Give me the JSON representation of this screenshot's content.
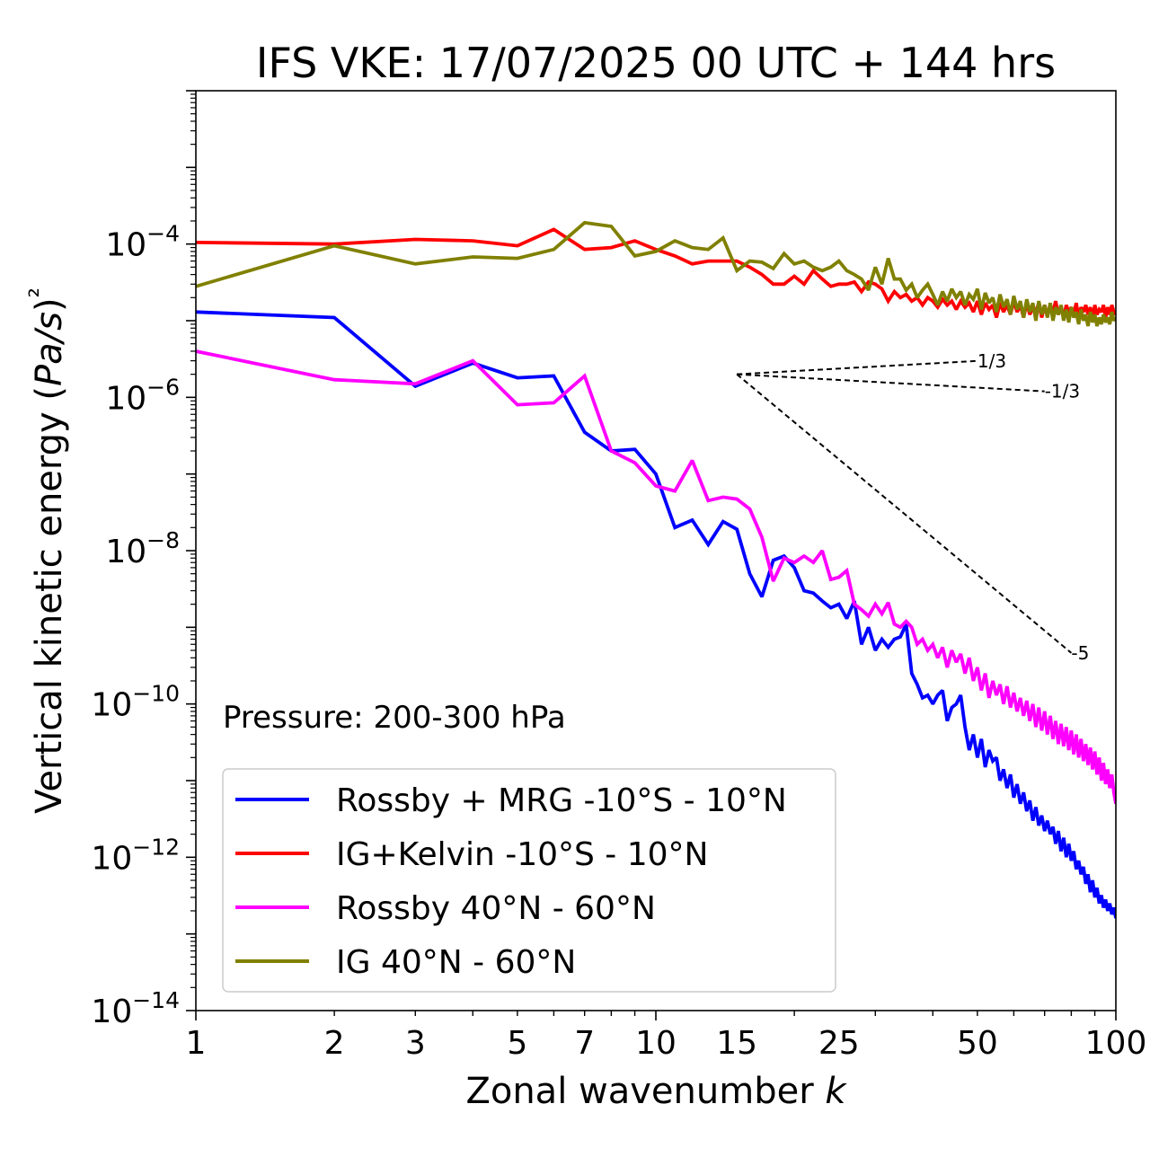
{
  "chart_data": {
    "type": "line",
    "title": "IFS VKE: 17/07/2025 00 UTC + 144 hrs",
    "xlabel": "Zonal wavenumber k",
    "ylabel": "Vertical kinetic energy (Pa/s)²",
    "xscale": "log",
    "yscale": "log",
    "xlim": [
      1,
      100
    ],
    "ylim": [
      1e-14,
      0.01
    ],
    "x_ticks": [
      1,
      2,
      3,
      5,
      7,
      10,
      15,
      25,
      50,
      100
    ],
    "x_tick_labels": [
      "1",
      "2",
      "3",
      "5",
      "7",
      "10",
      "15",
      "25",
      "50",
      "100"
    ],
    "y_ticks": [
      {
        "value": 0.0001,
        "base": "10",
        "exp": "−4"
      },
      {
        "value": 1e-06,
        "base": "10",
        "exp": "−6"
      },
      {
        "value": 1e-08,
        "base": "10",
        "exp": "−8"
      },
      {
        "value": 1e-10,
        "base": "10",
        "exp": "−10"
      },
      {
        "value": 1e-12,
        "base": "10",
        "exp": "−12"
      },
      {
        "value": 1e-14,
        "base": "10",
        "exp": "−14"
      }
    ],
    "grid": false,
    "legend_position": "lower-left",
    "annotation": "Pressure: 200-300 hPa",
    "reference_slopes": [
      {
        "label": "1/3",
        "slope": 0.3333,
        "x_start": 15,
        "y_start": 2e-06,
        "x_end": 50
      },
      {
        "label": "-1/3",
        "slope": -0.3333,
        "x_start": 15,
        "y_start": 2e-06,
        "x_end": 70
      },
      {
        "label": "-5",
        "slope": -5,
        "x_start": 15,
        "y_start": 2e-06,
        "x_end": 80
      }
    ],
    "series": [
      {
        "name": "Rossby + MRG -10°S - 10°N",
        "color": "#0000ff",
        "x": [
          1,
          2,
          3,
          4,
          5,
          6,
          7,
          8,
          9,
          10,
          11,
          12,
          13,
          14,
          15,
          16,
          17,
          18,
          19,
          20,
          21,
          22,
          23,
          24,
          25,
          26,
          27,
          28,
          29,
          30,
          31,
          32,
          33,
          34,
          35,
          36,
          37,
          38,
          39,
          40,
          41,
          42,
          43,
          44,
          45,
          46,
          47,
          48,
          49,
          50,
          51,
          52,
          53,
          54,
          55,
          56,
          57,
          58,
          59,
          60,
          61,
          62,
          63,
          64,
          65,
          66,
          67,
          68,
          69,
          70,
          71,
          72,
          73,
          74,
          75,
          76,
          77,
          78,
          79,
          80,
          81,
          82,
          83,
          84,
          85,
          86,
          87,
          88,
          89,
          90,
          91,
          92,
          93,
          94,
          95,
          96,
          97,
          98,
          99,
          100
        ],
        "y": [
          1.3e-05,
          1.1e-05,
          1.4e-06,
          2.8e-06,
          1.8e-06,
          1.9e-06,
          3.5e-07,
          2e-07,
          2.1e-07,
          1e-07,
          2e-08,
          2.5e-08,
          1.2e-08,
          2.4e-08,
          1.9e-08,
          5e-09,
          2.5e-09,
          7.5e-09,
          8.5e-09,
          6e-09,
          3e-09,
          2.8e-09,
          2.2e-09,
          1.8e-09,
          2e-09,
          1.3e-09,
          2.2e-09,
          6e-10,
          1e-09,
          5e-10,
          7e-10,
          5.5e-10,
          7e-10,
          7.5e-10,
          1.1e-09,
          2.5e-10,
          1.8e-10,
          1.2e-10,
          1.3e-10,
          1e-10,
          1.3e-10,
          1.5e-10,
          6e-11,
          9e-11,
          1e-10,
          1.3e-10,
          5e-11,
          2.5e-11,
          4e-11,
          2e-11,
          3.5e-11,
          1.5e-11,
          2.5e-11,
          1.8e-11,
          2e-11,
          1e-11,
          1.4e-11,
          8e-12,
          1.2e-11,
          6e-12,
          9e-12,
          5e-12,
          7e-12,
          4e-12,
          5.5e-12,
          3e-12,
          4.5e-12,
          2.6e-12,
          3.5e-12,
          2.2e-12,
          3e-12,
          2e-12,
          2.5e-12,
          1.5e-12,
          2.2e-12,
          1.2e-12,
          1.8e-12,
          1e-12,
          1.5e-12,
          9e-13,
          1.2e-12,
          7e-13,
          9e-13,
          6e-13,
          7.5e-13,
          4.5e-13,
          6e-13,
          3.5e-13,
          5e-13,
          3e-13,
          4e-13,
          2.5e-13,
          3.2e-13,
          2.2e-13,
          2.8e-13,
          2e-13,
          2.5e-13,
          1.8e-13,
          2.2e-13,
          1.6e-13
        ]
      },
      {
        "name": "IG+Kelvin -10°S - 10°N",
        "color": "#ff0000",
        "x": [
          1,
          2,
          3,
          4,
          5,
          6,
          7,
          8,
          9,
          10,
          11,
          12,
          13,
          14,
          15,
          16,
          17,
          18,
          19,
          20,
          21,
          22,
          23,
          24,
          25,
          26,
          27,
          28,
          29,
          30,
          31,
          32,
          33,
          34,
          35,
          36,
          37,
          38,
          39,
          40,
          41,
          42,
          43,
          44,
          45,
          46,
          47,
          48,
          49,
          50,
          51,
          52,
          53,
          54,
          55,
          56,
          57,
          58,
          59,
          60,
          61,
          62,
          63,
          64,
          65,
          66,
          67,
          68,
          69,
          70,
          71,
          72,
          73,
          74,
          75,
          76,
          77,
          78,
          79,
          80,
          81,
          82,
          83,
          84,
          85,
          86,
          87,
          88,
          89,
          90,
          91,
          92,
          93,
          94,
          95,
          96,
          97,
          98,
          99,
          100
        ],
        "y": [
          0.000105,
          0.0001,
          0.000115,
          0.00011,
          9.5e-05,
          0.000155,
          8.5e-05,
          9e-05,
          0.00011,
          8.5e-05,
          7e-05,
          5.5e-05,
          6e-05,
          6e-05,
          6e-05,
          5e-05,
          4e-05,
          3e-05,
          3e-05,
          3.8e-05,
          3e-05,
          4.5e-05,
          3.5e-05,
          2.8e-05,
          3e-05,
          3e-05,
          3.2e-05,
          2.4e-05,
          3.2e-05,
          3e-05,
          2.6e-05,
          1.8e-05,
          2.4e-05,
          2e-05,
          2.2e-05,
          1.8e-05,
          2e-05,
          1.6e-05,
          2e-05,
          1.8e-05,
          1.5e-05,
          1.9e-05,
          1.6e-05,
          1.8e-05,
          1.4e-05,
          1.8e-05,
          1.5e-05,
          1.7e-05,
          1.3e-05,
          1.8e-05,
          1.2e-05,
          1.7e-05,
          1.4e-05,
          1.6e-05,
          1.1e-05,
          1.7e-05,
          1.3e-05,
          1.6e-05,
          1.2e-05,
          1.8e-05,
          1.3e-05,
          1.6e-05,
          1.1e-05,
          1.7e-05,
          1.2e-05,
          1.5e-05,
          1.3e-05,
          1.7e-05,
          1.1e-05,
          1.6e-05,
          1.2e-05,
          1.5e-05,
          1.3e-05,
          1.8e-05,
          1.2e-05,
          1.5e-05,
          1.1e-05,
          1.6e-05,
          1.3e-05,
          1.5e-05,
          1.2e-05,
          1.7e-05,
          1.1e-05,
          1.5e-05,
          1.3e-05,
          1.6e-05,
          1.2e-05,
          1.5e-05,
          1.1e-05,
          1.6e-05,
          1.2e-05,
          1.4e-05,
          1.3e-05,
          1.6e-05,
          1.1e-05,
          1.5e-05,
          1.2e-05,
          1.6e-05,
          1.3e-05,
          1.2e-05
        ]
      },
      {
        "name": "Rossby 40°N - 60°N",
        "color": "#ff00ff",
        "x": [
          1,
          2,
          3,
          4,
          5,
          6,
          7,
          8,
          9,
          10,
          11,
          12,
          13,
          14,
          15,
          16,
          17,
          18,
          19,
          20,
          21,
          22,
          23,
          24,
          25,
          26,
          27,
          28,
          29,
          30,
          31,
          32,
          33,
          34,
          35,
          36,
          37,
          38,
          39,
          40,
          41,
          42,
          43,
          44,
          45,
          46,
          47,
          48,
          49,
          50,
          51,
          52,
          53,
          54,
          55,
          56,
          57,
          58,
          59,
          60,
          61,
          62,
          63,
          64,
          65,
          66,
          67,
          68,
          69,
          70,
          71,
          72,
          73,
          74,
          75,
          76,
          77,
          78,
          79,
          80,
          81,
          82,
          83,
          84,
          85,
          86,
          87,
          88,
          89,
          90,
          91,
          92,
          93,
          94,
          95,
          96,
          97,
          98,
          99,
          100
        ],
        "y": [
          4e-06,
          1.7e-06,
          1.5e-06,
          3e-06,
          8e-07,
          8.5e-07,
          1.9e-06,
          2e-07,
          1.4e-07,
          7e-08,
          6e-08,
          1.5e-07,
          4.5e-08,
          5e-08,
          4.7e-08,
          3.5e-08,
          1.5e-08,
          4e-09,
          8e-09,
          7e-09,
          8.5e-09,
          7e-09,
          1e-08,
          4.2e-09,
          4.5e-09,
          5.5e-09,
          2e-09,
          1.7e-09,
          1.4e-09,
          2e-09,
          1.5e-09,
          2.1e-09,
          1.1e-09,
          1e-09,
          1.2e-09,
          1e-09,
          6e-10,
          7e-10,
          5e-10,
          6e-10,
          4e-10,
          5.5e-10,
          3e-10,
          5e-10,
          3.5e-10,
          4.5e-10,
          2.5e-10,
          4e-10,
          2e-10,
          3e-10,
          1.5e-10,
          2.5e-10,
          1.2e-10,
          2e-10,
          1.3e-10,
          1.8e-10,
          1e-10,
          1.7e-10,
          9e-11,
          1.4e-10,
          8e-11,
          1.2e-10,
          7e-11,
          1.1e-10,
          6e-11,
          1e-10,
          5e-11,
          9e-11,
          4.5e-11,
          8e-11,
          4e-11,
          7e-11,
          3.5e-11,
          6e-11,
          3e-11,
          5.5e-11,
          2.8e-11,
          5e-11,
          2.5e-11,
          4.5e-11,
          2.2e-11,
          4e-11,
          2e-11,
          3.5e-11,
          1.8e-11,
          3e-11,
          1.6e-11,
          2.7e-11,
          1.4e-11,
          2.4e-11,
          1.2e-11,
          2e-11,
          1e-11,
          1.7e-11,
          9e-12,
          1.4e-11,
          8e-12,
          1.2e-11,
          7e-12,
          5e-12
        ]
      },
      {
        "name": "IG 40°N - 60°N",
        "color": "#808000",
        "x": [
          1,
          2,
          3,
          4,
          5,
          6,
          7,
          8,
          9,
          10,
          11,
          12,
          13,
          14,
          15,
          16,
          17,
          18,
          19,
          20,
          21,
          22,
          23,
          24,
          25,
          26,
          27,
          28,
          29,
          30,
          31,
          32,
          33,
          34,
          35,
          36,
          37,
          38,
          39,
          40,
          41,
          42,
          43,
          44,
          45,
          46,
          47,
          48,
          49,
          50,
          51,
          52,
          53,
          54,
          55,
          56,
          57,
          58,
          59,
          60,
          61,
          62,
          63,
          64,
          65,
          66,
          67,
          68,
          69,
          70,
          71,
          72,
          73,
          74,
          75,
          76,
          77,
          78,
          79,
          80,
          81,
          82,
          83,
          84,
          85,
          86,
          87,
          88,
          89,
          90,
          91,
          92,
          93,
          94,
          95,
          96,
          97,
          98,
          99,
          100
        ],
        "y": [
          2.8e-05,
          9.5e-05,
          5.5e-05,
          6.8e-05,
          6.5e-05,
          8.5e-05,
          0.00019,
          0.00017,
          7e-05,
          8e-05,
          0.00011,
          9e-05,
          8.5e-05,
          0.00012,
          4.5e-05,
          6e-05,
          5.8e-05,
          4.8e-05,
          7.5e-05,
          5.5e-05,
          6e-05,
          5e-05,
          4.5e-05,
          5e-05,
          6e-05,
          4.5e-05,
          4e-05,
          3.5e-05,
          2.5e-05,
          5e-05,
          3e-05,
          6.5e-05,
          3.5e-05,
          3.5e-05,
          2.5e-05,
          3e-05,
          2e-05,
          2.5e-05,
          3e-05,
          2.2e-05,
          1.6e-05,
          2.4e-05,
          1.8e-05,
          2.6e-05,
          2e-05,
          2.4e-05,
          1.6e-05,
          2.2e-05,
          1.9e-05,
          2.6e-05,
          1.4e-05,
          2.3e-05,
          1.7e-05,
          2e-05,
          1.3e-05,
          2.2e-05,
          1.5e-05,
          1.9e-05,
          1.2e-05,
          2.1e-05,
          1.4e-05,
          1.8e-05,
          1.1e-05,
          1.9e-05,
          1.3e-05,
          1.7e-05,
          1e-05,
          1.8e-05,
          1.2e-05,
          1.6e-05,
          1.1e-05,
          1.7e-05,
          1e-05,
          1.5e-05,
          1.2e-05,
          1.6e-05,
          1e-05,
          1.4e-05,
          9.5e-06,
          1.5e-05,
          1.1e-05,
          1.3e-05,
          9e-06,
          1.4e-05,
          1e-05,
          1.2e-05,
          8.5e-06,
          1.3e-05,
          9.5e-06,
          1.2e-05,
          8.5e-06,
          1.1e-05,
          9e-06,
          1.2e-05,
          9.5e-06,
          1.1e-05,
          9e-06,
          1.3e-05,
          1e-05,
          1.1e-05
        ]
      }
    ]
  }
}
